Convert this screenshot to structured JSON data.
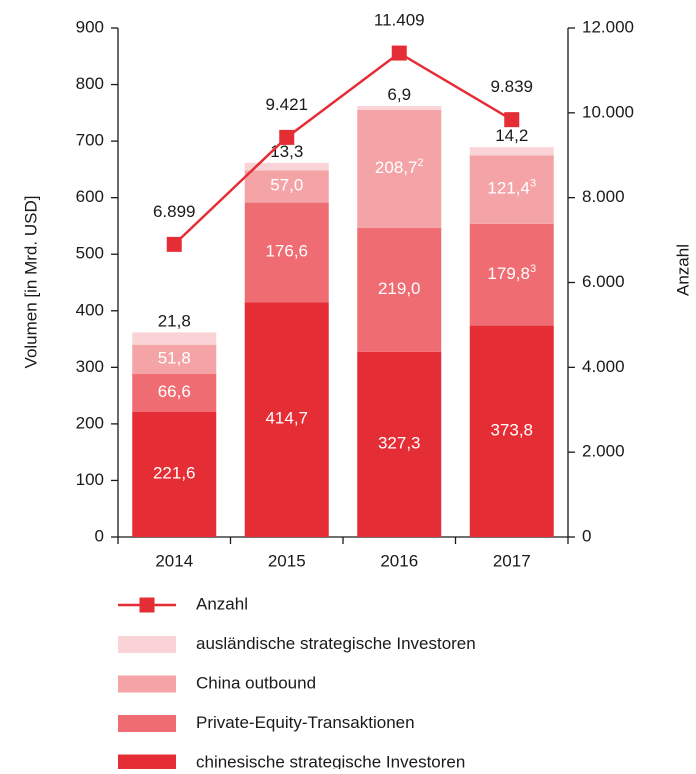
{
  "chart_data": {
    "type": "bar",
    "categories": [
      "2014",
      "2015",
      "2016",
      "2017"
    ],
    "ylabel": "Volumen [in Mrd. USD]",
    "y2label": "Anzahl",
    "ylim": [
      0,
      900
    ],
    "yticks": [
      0,
      100,
      200,
      300,
      400,
      500,
      600,
      700,
      800,
      900
    ],
    "y2lim": [
      0,
      12000
    ],
    "y2ticks": [
      0,
      {
        "value": 2000,
        "label": "2.000"
      },
      {
        "value": 4000,
        "label": "4.000"
      },
      {
        "value": 6000,
        "label": "6.000"
      },
      {
        "value": 8000,
        "label": "8.000"
      },
      {
        "value": 10000,
        "label": "10.000"
      },
      {
        "value": 12000,
        "label": "12.000"
      }
    ],
    "stacked": true,
    "series": [
      {
        "name": "chinesische strategische Investoren",
        "color": "#e52d35",
        "values": [
          221.6,
          414.7,
          327.3,
          373.8
        ],
        "value_labels": [
          "221,6",
          "414,7",
          "327,3",
          "373,8"
        ]
      },
      {
        "name": "Private-Equity-Transaktionen",
        "color": "#ef6c72",
        "values": [
          66.6,
          176.6,
          219.0,
          179.8
        ],
        "value_labels": [
          "66,6",
          "176,6",
          "219,0",
          "179,8"
        ],
        "value_footnotes": [
          null,
          null,
          null,
          "3"
        ]
      },
      {
        "name": "China outbound",
        "color": "#f4a4a7",
        "values": [
          51.8,
          57.0,
          208.7,
          121.4
        ],
        "value_labels": [
          "51,8",
          "57,0",
          "208,7",
          "121,4"
        ],
        "value_footnotes": [
          null,
          null,
          "2",
          "3"
        ]
      },
      {
        "name": "ausländische strategische Investoren",
        "color": "#f9d3d5",
        "values": [
          21.8,
          13.3,
          6.9,
          14.2
        ],
        "value_labels": [
          "21,8",
          "13,3",
          "6,9",
          "14,2"
        ]
      },
      {
        "name": "Anzahl",
        "type": "line",
        "axis": "y2",
        "color": "#e52d35",
        "values": [
          6899,
          9421,
          11409,
          9839
        ],
        "value_labels": [
          "6.899",
          "9.421",
          "11.409",
          "9.839"
        ]
      }
    ]
  }
}
